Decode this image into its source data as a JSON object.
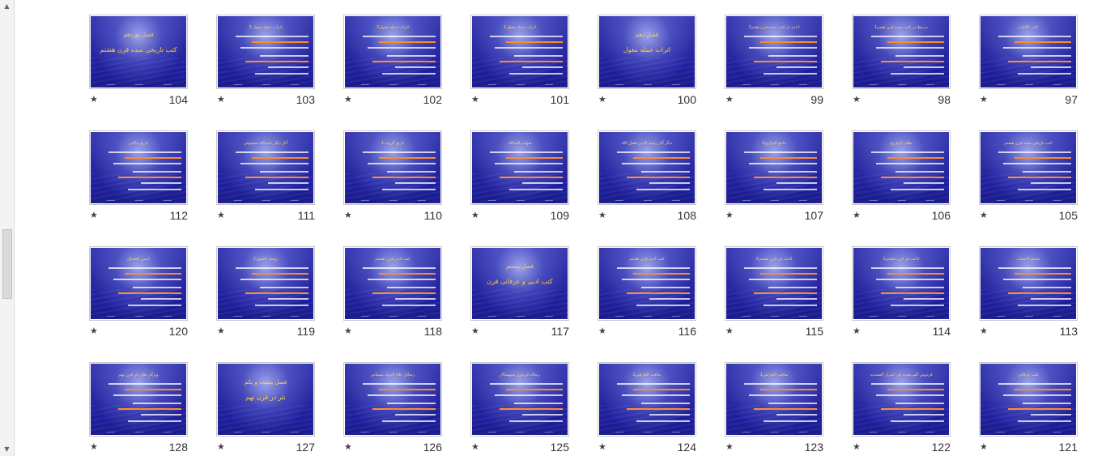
{
  "colors": {
    "slide_bg": "#2a2aa0",
    "title": "#ffd24a",
    "highlight": "#ff8a2a"
  },
  "scrollbar": {
    "up_icon": "triangle-up-icon",
    "down_icon": "triangle-down-icon"
  },
  "rows": [
    [
      {
        "num": "104",
        "title": "فصل نوزدهم",
        "subtitle": "کتب تاریخی سده قرن هشتم",
        "kind": "section"
      },
      {
        "num": "103",
        "title": "اثرات حمله مغول 3",
        "kind": "text"
      },
      {
        "num": "102",
        "title": "اثرات حمله مغول2",
        "kind": "text"
      },
      {
        "num": "101",
        "title": "اثرات حمله مغول1",
        "kind": "text"
      },
      {
        "num": "100",
        "title": "فصل دهم",
        "subtitle": "اثرات حمله مغول",
        "kind": "section"
      },
      {
        "num": "99",
        "title": "ادامه در کتب سده قرن هفتم2",
        "kind": "text"
      },
      {
        "num": "98",
        "title": "مرتبط در کتب سده قرن هفتم1",
        "kind": "text"
      },
      {
        "num": "97",
        "title": "لباب الالباب",
        "kind": "text"
      }
    ],
    [
      {
        "num": "112",
        "title": "تاریخ بناکتی",
        "kind": "text"
      },
      {
        "num": "111",
        "title": "آثار دیگر حمدالله مستوفی",
        "kind": "text"
      },
      {
        "num": "110",
        "title": "تاریخ گزیده 1",
        "kind": "text"
      },
      {
        "num": "109",
        "title": "شهاب السالک",
        "kind": "text"
      },
      {
        "num": "108",
        "title": "دیگر آثار رشید الدین فضل الله",
        "kind": "text"
      },
      {
        "num": "107",
        "title": "جامع التواریخ2",
        "kind": "text"
      },
      {
        "num": "106",
        "title": "نظام التواریخ",
        "kind": "text"
      },
      {
        "num": "105",
        "title": "کتب تاریخی سده قرن هشتم",
        "kind": "text"
      }
    ],
    [
      {
        "num": "120",
        "title": "انیس العشاق",
        "kind": "text"
      },
      {
        "num": "119",
        "title": "روضة العقول2",
        "kind": "text"
      },
      {
        "num": "118",
        "title": "کتب ادبی قرن هشتم",
        "kind": "text"
      },
      {
        "num": "117",
        "title": "فصل بیستم",
        "subtitle": "کتب ادبی و عرفانی قرن هشتم",
        "kind": "section"
      },
      {
        "num": "116",
        "title": "کتب ادبی قرن هشتم",
        "kind": "text"
      },
      {
        "num": "115",
        "title": "ادامه نثر قرن هشتم2",
        "kind": "text"
      },
      {
        "num": "114",
        "title": "ادامه نثر قرن هشتم1",
        "kind": "text"
      },
      {
        "num": "113",
        "title": "مجمع الانساب",
        "kind": "text"
      }
    ],
    [
      {
        "num": "128",
        "title": "ویژگی های نثر قرن نهم",
        "kind": "text"
      },
      {
        "num": "127",
        "title": "فصل بیست و یکم",
        "subtitle": "نثر در قرن نهم",
        "kind": "section"
      },
      {
        "num": "126",
        "title": "رسائل علاء الدوله سمنانی",
        "kind": "text"
      },
      {
        "num": "125",
        "title": "رساله فریدون سپهسالار",
        "kind": "text"
      },
      {
        "num": "124",
        "title": "مناقب العارفین2",
        "kind": "text"
      },
      {
        "num": "123",
        "title": "مناقب العارفین1",
        "kind": "text"
      },
      {
        "num": "122",
        "title": "فردوس المرشدیه فی اسرار الصمدیه",
        "kind": "text"
      },
      {
        "num": "121",
        "title": "کتب عرفانی",
        "kind": "text"
      }
    ]
  ]
}
